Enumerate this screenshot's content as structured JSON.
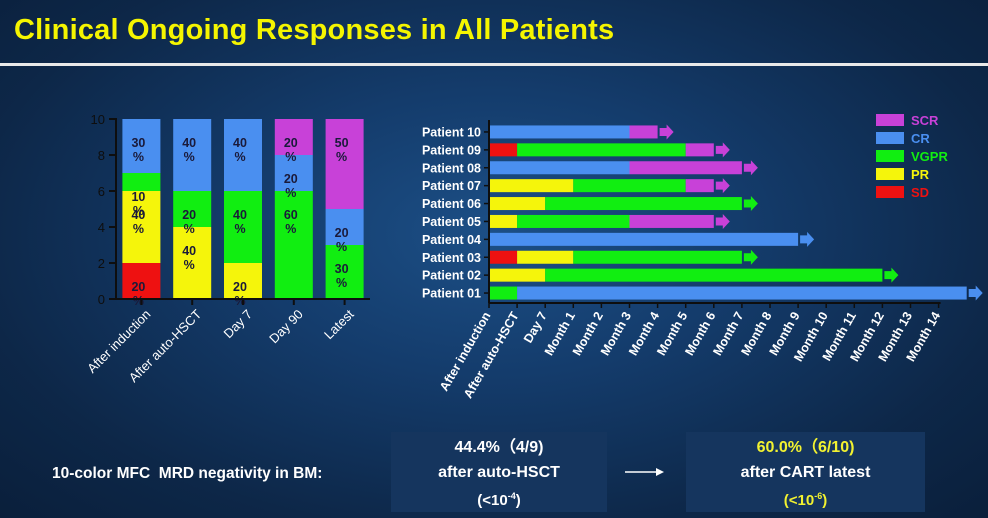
{
  "title": "Clinical Ongoing Responses in All Patients",
  "colors": {
    "title": "#f5f500",
    "SCR": "#c841d8",
    "CR": "#4a8ff0",
    "VGPR": "#11ee11",
    "PR": "#f5f50b",
    "SD": "#ee1111"
  },
  "chart_data": [
    {
      "type": "bar",
      "stacked": true,
      "categories": [
        "After induction",
        "After auto-HSCT",
        "Day 7",
        "Day 90",
        "Latest"
      ],
      "ylim": [
        0,
        10
      ],
      "yticks": [
        "0",
        "2",
        "4",
        "6",
        "8",
        "10"
      ],
      "series": [
        {
          "name": "SD",
          "values": [
            2,
            0,
            0,
            0,
            0
          ]
        },
        {
          "name": "PR",
          "values": [
            4,
            4,
            2,
            0,
            0
          ]
        },
        {
          "name": "VGPR",
          "values": [
            1,
            2,
            4,
            6,
            3
          ]
        },
        {
          "name": "CR",
          "values": [
            3,
            4,
            4,
            2,
            2
          ]
        },
        {
          "name": "SCR",
          "values": [
            0,
            0,
            0,
            2,
            5
          ]
        }
      ],
      "data_labels": [
        [
          "20\n%",
          "40\n%",
          "10\n%",
          "30\n%"
        ],
        [
          "40\n%",
          "20\n%",
          "40\n%"
        ],
        [
          "20\n%",
          "40\n%",
          "40\n%"
        ],
        [
          "60\n%",
          "20\n%",
          "20\n%"
        ],
        [
          "30\n%",
          "20\n%",
          "50\n%"
        ]
      ]
    },
    {
      "type": "bar",
      "orientation": "horizontal",
      "x_ticks": [
        "After induction",
        "After auto-HSCT",
        "Day 7",
        "Month 1",
        "Month 2",
        "Month 3",
        "Month 4",
        "Month 5",
        "Month 6",
        "Month 7",
        "Month 8",
        "Month 9",
        "Month 10",
        "Month 11",
        "Month 12",
        "Month 13",
        "Month 14"
      ],
      "legend": [
        "SCR",
        "CR",
        "VGPR",
        "PR",
        "SD"
      ],
      "legend_position": "top-right",
      "patients": [
        {
          "name": "Patient 10",
          "segments": [
            {
              "status": "CR",
              "start": 0,
              "end": 5
            },
            {
              "status": "SCR",
              "start": 5,
              "end": 6
            }
          ],
          "ongoing": "SCR"
        },
        {
          "name": "Patient 09",
          "segments": [
            {
              "status": "SD",
              "start": 0,
              "end": 1
            },
            {
              "status": "VGPR",
              "start": 1,
              "end": 7
            },
            {
              "status": "SCR",
              "start": 7,
              "end": 8
            }
          ],
          "ongoing": "SCR"
        },
        {
          "name": "Patient 08",
          "segments": [
            {
              "status": "CR",
              "start": 0,
              "end": 5
            },
            {
              "status": "SCR",
              "start": 5,
              "end": 9
            }
          ],
          "ongoing": "SCR"
        },
        {
          "name": "Patient 07",
          "segments": [
            {
              "status": "PR",
              "start": 0,
              "end": 3
            },
            {
              "status": "VGPR",
              "start": 3,
              "end": 7
            },
            {
              "status": "SCR",
              "start": 7,
              "end": 8
            }
          ],
          "ongoing": "SCR"
        },
        {
          "name": "Patient 06",
          "segments": [
            {
              "status": "PR",
              "start": 0,
              "end": 2
            },
            {
              "status": "VGPR",
              "start": 2,
              "end": 9
            }
          ],
          "ongoing": "VGPR"
        },
        {
          "name": "Patient 05",
          "segments": [
            {
              "status": "PR",
              "start": 0,
              "end": 1
            },
            {
              "status": "VGPR",
              "start": 1,
              "end": 5
            },
            {
              "status": "SCR",
              "start": 5,
              "end": 8
            }
          ],
          "ongoing": "SCR"
        },
        {
          "name": "Patient 04",
          "segments": [
            {
              "status": "CR",
              "start": 0,
              "end": 11
            }
          ],
          "ongoing": "CR"
        },
        {
          "name": "Patient 03",
          "segments": [
            {
              "status": "SD",
              "start": 0,
              "end": 1
            },
            {
              "status": "PR",
              "start": 1,
              "end": 3
            },
            {
              "status": "VGPR",
              "start": 3,
              "end": 9
            }
          ],
          "ongoing": "VGPR"
        },
        {
          "name": "Patient 02",
          "segments": [
            {
              "status": "PR",
              "start": 0,
              "end": 2
            },
            {
              "status": "VGPR",
              "start": 2,
              "end": 14
            }
          ],
          "ongoing": "VGPR"
        },
        {
          "name": "Patient 01",
          "segments": [
            {
              "status": "VGPR",
              "start": 0,
              "end": 1
            },
            {
              "status": "CR",
              "start": 1,
              "end": 17
            }
          ],
          "ongoing": "CR"
        }
      ]
    }
  ],
  "mrd": {
    "label": "10-color MFC  MRD negativity in BM:",
    "box1": {
      "line1": "44.4%（4/9)",
      "line2": "after auto-HSCT",
      "line3_prefix": "(<10",
      "line3_exp": "-4",
      "line3_suffix": ")"
    },
    "box2": {
      "line1": "60.0%（6/10)",
      "line2": "after CART latest",
      "line3_prefix": "(<10",
      "line3_exp": "-6",
      "line3_suffix": ")"
    }
  }
}
